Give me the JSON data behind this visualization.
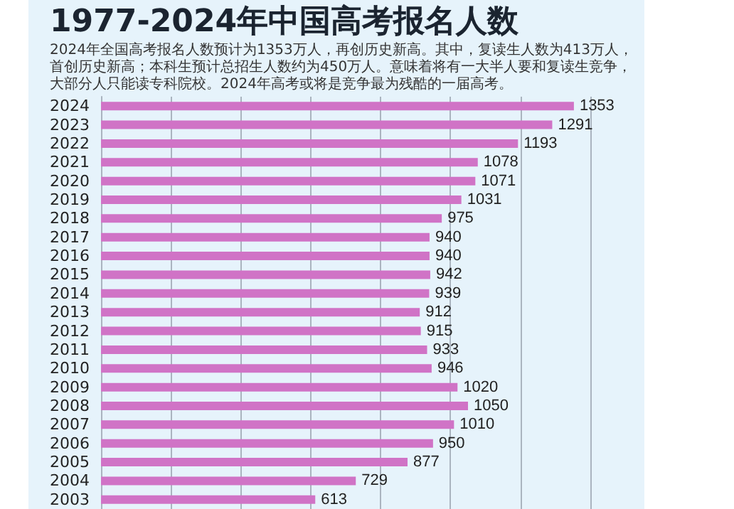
{
  "chart_data": {
    "type": "bar",
    "orientation": "horizontal",
    "title": "1977-2024年中国高考报名人数",
    "subtitle": "2024年全国高考报名人数预计为1353万人，再创历史新高。其中，复读生人数为413万人，首创历史新高；本科生预计总招生人数约为450万人。意味着将有一大半人要和复读生竞争，大部分人只能读专科院校。2024年高考或将是竞争最为残酷的一届高考。",
    "categories": [
      "2024",
      "2023",
      "2022",
      "2021",
      "2020",
      "2019",
      "2018",
      "2017",
      "2016",
      "2015",
      "2014",
      "2013",
      "2012",
      "2011",
      "2010",
      "2009",
      "2008",
      "2007",
      "2006",
      "2005",
      "2004",
      "2003"
    ],
    "values": [
      1353,
      1291,
      1193,
      1078,
      1071,
      1031,
      975,
      940,
      940,
      942,
      939,
      912,
      915,
      933,
      946,
      1020,
      1050,
      1010,
      950,
      877,
      729,
      613
    ],
    "color": "#d073c6",
    "data_labels": true,
    "grid": "x",
    "tick_labels": "y",
    "xlim": [
      0,
      1400
    ],
    "xticks": [
      {
        "value": 0,
        "label": null
      },
      {
        "value": 200,
        "label": null
      },
      {
        "value": 400,
        "label": null
      },
      {
        "value": 600,
        "label": null
      },
      {
        "value": 800,
        "label": null
      },
      {
        "value": 1000,
        "label": null
      },
      {
        "value": 1200,
        "label": null
      },
      {
        "value": 1400,
        "label": null
      }
    ]
  }
}
